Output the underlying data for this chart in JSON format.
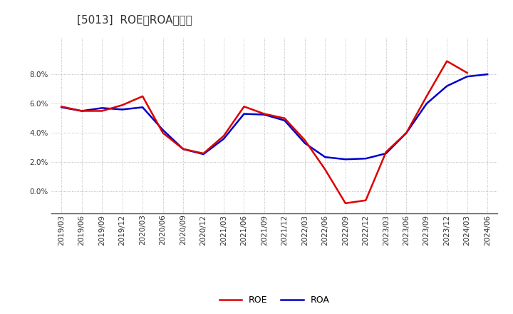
{
  "title": "[5013]  ROE、ROAの推移",
  "roe_data": [
    [
      "2019/03",
      5.8
    ],
    [
      "2019/06",
      5.5
    ],
    [
      "2019/09",
      5.5
    ],
    [
      "2019/12",
      5.9
    ],
    [
      "2020/03",
      6.5
    ],
    [
      "2020/06",
      4.0
    ],
    [
      "2020/09",
      2.9
    ],
    [
      "2020/12",
      2.6
    ],
    [
      "2021/03",
      3.8
    ],
    [
      "2021/06",
      5.8
    ],
    [
      "2021/09",
      5.3
    ],
    [
      "2021/12",
      5.0
    ],
    [
      "2022/03",
      3.5
    ],
    [
      "2022/06",
      1.5
    ],
    [
      "2022/09",
      -0.8
    ],
    [
      "2022/12",
      -0.6
    ],
    [
      "2023/03",
      2.7
    ],
    [
      "2023/06",
      4.0
    ],
    [
      "2023/09",
      6.5
    ],
    [
      "2023/12",
      8.9
    ],
    [
      "2024/03",
      8.1
    ]
  ],
  "roa_data": [
    [
      "2019/03",
      5.75
    ],
    [
      "2019/06",
      5.5
    ],
    [
      "2019/09",
      5.7
    ],
    [
      "2019/12",
      5.6
    ],
    [
      "2020/03",
      5.75
    ],
    [
      "2020/06",
      4.2
    ],
    [
      "2020/09",
      2.9
    ],
    [
      "2020/12",
      2.55
    ],
    [
      "2021/03",
      3.6
    ],
    [
      "2021/06",
      5.3
    ],
    [
      "2021/09",
      5.25
    ],
    [
      "2021/12",
      4.85
    ],
    [
      "2022/03",
      3.3
    ],
    [
      "2022/06",
      2.35
    ],
    [
      "2022/09",
      2.2
    ],
    [
      "2022/12",
      2.25
    ],
    [
      "2023/03",
      2.6
    ],
    [
      "2023/06",
      4.0
    ],
    [
      "2023/09",
      6.0
    ],
    [
      "2023/12",
      7.2
    ],
    [
      "2024/03",
      7.85
    ],
    [
      "2024/06",
      8.0
    ]
  ],
  "roe_color": "#dd0000",
  "roa_color": "#0000cc",
  "bg_color": "#ffffff",
  "plot_bg_color": "#ffffff",
  "grid_color": "#aaaaaa",
  "ylim": [
    -1.5,
    10.5
  ],
  "yticks": [
    0.0,
    2.0,
    4.0,
    6.0,
    8.0
  ],
  "line_width": 1.8,
  "title_fontsize": 11,
  "legend_fontsize": 9,
  "tick_fontsize": 7.5
}
